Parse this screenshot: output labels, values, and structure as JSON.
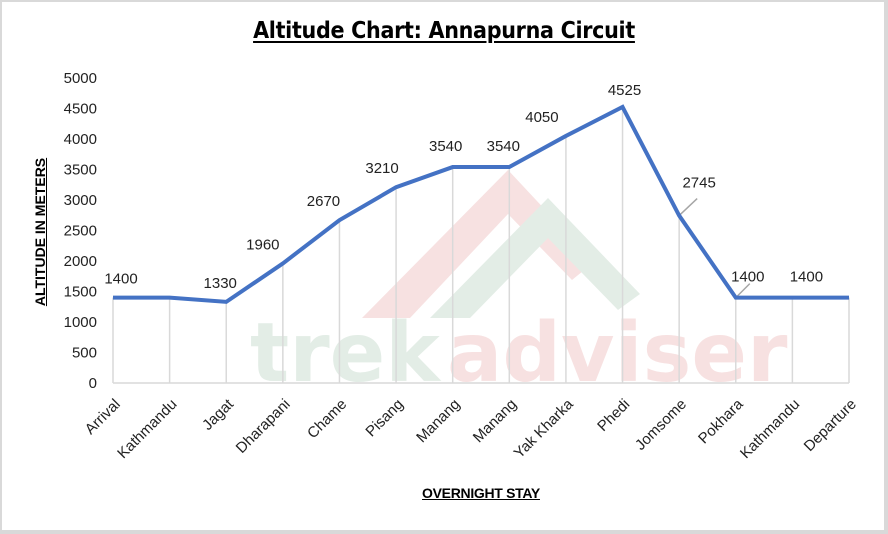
{
  "chart_data": {
    "type": "line",
    "title": "Altitude Chart: Annapurna Circuit",
    "xlabel": "OVERNIGHT STAY",
    "ylabel": "ALTITUDE IN METERS",
    "ylim": [
      0,
      5000
    ],
    "yticks": [
      0,
      500,
      1000,
      1500,
      2000,
      2500,
      3000,
      3500,
      4000,
      4500,
      5000
    ],
    "grid": {
      "vertical": true,
      "horizontal": false
    },
    "legend": null,
    "categories": [
      "Arrival",
      "Kathmandu",
      "Jagat",
      "Dharapani",
      "Chame",
      "Pisang",
      "Manang",
      "Manang",
      "Yak Kharka",
      "Phedi",
      "Jomsome",
      "Pokhara",
      "Kathmandu",
      "Departure"
    ],
    "series": [
      {
        "name": "Altitude",
        "color": "#4472c4",
        "values": [
          1400,
          1400,
          1330,
          1960,
          2670,
          3210,
          3540,
          3540,
          4050,
          4525,
          2745,
          1400,
          1400,
          1400
        ]
      }
    ],
    "data_labels": [
      {
        "index": 0,
        "text": "1400"
      },
      {
        "index": 2,
        "text": "1330"
      },
      {
        "index": 3,
        "text": "1960"
      },
      {
        "index": 4,
        "text": "2670"
      },
      {
        "index": 5,
        "text": "3210"
      },
      {
        "index": 6,
        "text": "3540"
      },
      {
        "index": 7,
        "text": "3540"
      },
      {
        "index": 8,
        "text": "4050"
      },
      {
        "index": 9,
        "text": "4525"
      },
      {
        "index": 10,
        "text": "2745"
      },
      {
        "index": 11,
        "text": "1400"
      },
      {
        "index": 12,
        "text": "1400"
      }
    ],
    "watermark": "trekadviser"
  },
  "colors": {
    "line": "#4472c4",
    "grid": "#d9d9d9",
    "axis": "#d9d9d9",
    "watermark_green": "#e3ede6",
    "watermark_red": "#f7e1e1"
  }
}
